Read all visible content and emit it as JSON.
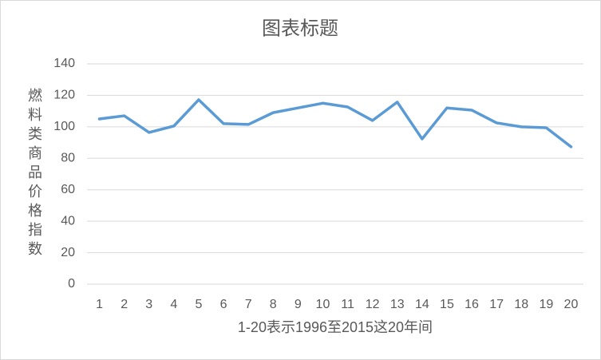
{
  "chart_data": {
    "type": "line",
    "title": "图表标题",
    "y_label": "燃料类商品价格指数",
    "x_label": "1-20表示1996至2015这20年间",
    "categories": [
      "1",
      "2",
      "3",
      "4",
      "5",
      "6",
      "7",
      "8",
      "9",
      "10",
      "11",
      "12",
      "13",
      "14",
      "15",
      "16",
      "17",
      "18",
      "19",
      "20"
    ],
    "series": [
      {
        "name": "燃料类商品价格指数",
        "color": "#5b9bd5",
        "values": [
          105,
          107,
          96.4,
          100.5,
          117.2,
          102,
          101.5,
          109,
          112,
          115,
          112.6,
          104,
          115.7,
          92.3,
          112,
          110.6,
          102.5,
          100,
          99.4,
          87.3
        ]
      }
    ],
    "ylim": [
      0,
      140
    ],
    "yticks": [
      0,
      20,
      40,
      60,
      80,
      100,
      120,
      140
    ],
    "grid": true
  }
}
